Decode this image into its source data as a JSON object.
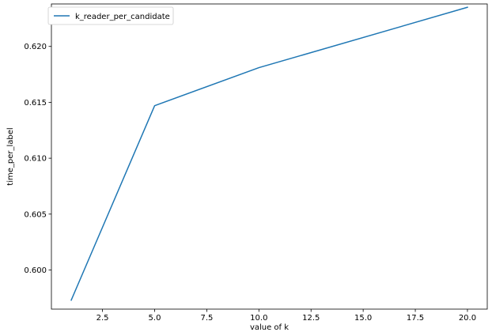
{
  "chart_data": {
    "type": "line",
    "title": "",
    "xlabel": "value of k",
    "ylabel": "time_per_label",
    "xlim": [
      0.05,
      20.95
    ],
    "ylim": [
      0.5965,
      0.6238
    ],
    "xticks": [
      2.5,
      5.0,
      7.5,
      10.0,
      12.5,
      15.0,
      17.5,
      20.0
    ],
    "xtick_labels": [
      "2.5",
      "5.0",
      "7.5",
      "10.0",
      "12.5",
      "15.0",
      "17.5",
      "20.0"
    ],
    "yticks": [
      0.6,
      0.605,
      0.61,
      0.615,
      0.62
    ],
    "ytick_labels": [
      "0.600",
      "0.605",
      "0.610",
      "0.615",
      "0.620"
    ],
    "grid": false,
    "legend_position": "top-left",
    "series": [
      {
        "name": "k_reader_per_candidate",
        "color": "#1f77b4",
        "x": [
          1,
          5,
          10,
          20
        ],
        "y": [
          0.5973,
          0.6147,
          0.6181,
          0.6235
        ]
      }
    ]
  }
}
